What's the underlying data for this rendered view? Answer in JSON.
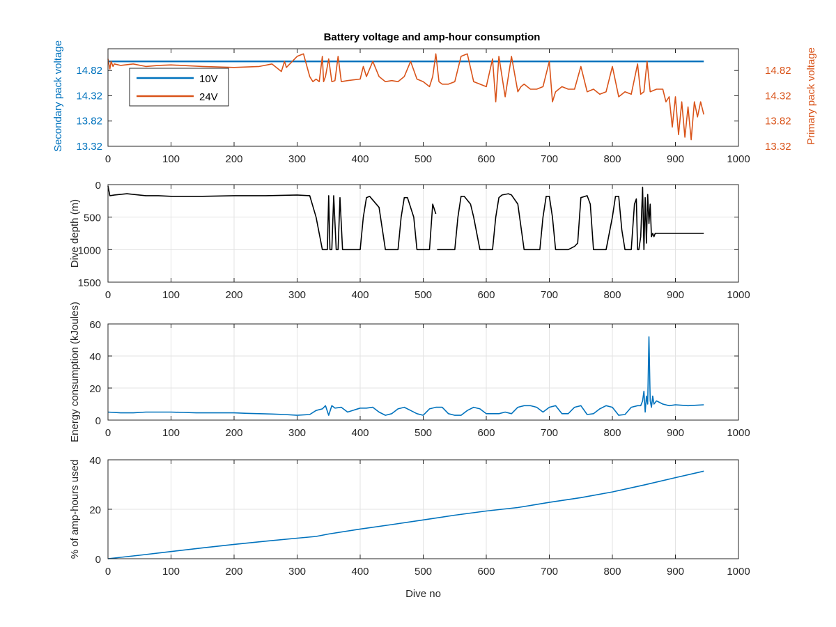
{
  "figure": {
    "title": "Battery voltage and amp-hour consumption",
    "colors": {
      "blue": "#0072BD",
      "orange": "#D95319",
      "black": "#000000",
      "grid": "#e3e3e3"
    }
  },
  "chart_data": [
    {
      "type": "line",
      "title": "Battery voltage and amp-hour consumption",
      "xlabel": "",
      "ylabel_left": "Secondary pack voltage",
      "ylabel_right": "Primary pack voltage",
      "xlim": [
        0,
        1000
      ],
      "xticks": [
        "0",
        "100",
        "200",
        "300",
        "400",
        "500",
        "600",
        "700",
        "800",
        "900",
        "1000"
      ],
      "ylim": [
        13.32,
        15.25
      ],
      "yticks_left": [
        "13.32",
        "13.82",
        "14.32",
        "14.82"
      ],
      "yticks_right": [
        "13.32",
        "13.82",
        "14.32",
        "14.82"
      ],
      "grid": false,
      "legend_position": "top-left",
      "series": [
        {
          "name": "10V",
          "color": "#0072BD",
          "axis": "left",
          "x": [
            0,
            945
          ],
          "y": [
            15.0,
            15.0
          ]
        },
        {
          "name": "24V",
          "color": "#D95319",
          "axis": "right",
          "x": [
            0,
            3,
            5,
            8,
            10,
            20,
            40,
            60,
            80,
            100,
            150,
            200,
            240,
            260,
            275,
            280,
            283,
            300,
            310,
            320,
            325,
            330,
            335,
            340,
            342,
            345,
            350,
            355,
            360,
            365,
            370,
            380,
            400,
            405,
            410,
            420,
            430,
            440,
            450,
            460,
            470,
            480,
            490,
            500,
            510,
            515,
            520,
            525,
            530,
            540,
            550,
            560,
            570,
            580,
            590,
            600,
            610,
            615,
            620,
            630,
            640,
            650,
            655,
            660,
            670,
            680,
            690,
            700,
            705,
            710,
            720,
            730,
            740,
            750,
            760,
            770,
            780,
            790,
            800,
            810,
            820,
            830,
            840,
            845,
            850,
            855,
            860,
            870,
            880,
            885,
            890,
            895,
            900,
            905,
            910,
            915,
            920,
            925,
            930,
            935,
            940,
            945
          ],
          "y": [
            15.05,
            14.85,
            15.0,
            14.9,
            14.95,
            14.92,
            14.95,
            14.9,
            14.92,
            14.93,
            14.9,
            14.88,
            14.9,
            14.95,
            14.8,
            15.0,
            14.88,
            15.1,
            15.15,
            14.7,
            14.6,
            14.65,
            14.6,
            15.1,
            14.6,
            14.7,
            15.05,
            14.6,
            14.62,
            15.1,
            14.6,
            14.62,
            14.65,
            14.9,
            14.7,
            15.0,
            14.7,
            14.6,
            14.62,
            14.6,
            14.7,
            15.0,
            14.65,
            14.6,
            14.5,
            14.7,
            15.15,
            14.6,
            14.55,
            14.55,
            14.6,
            15.1,
            15.15,
            14.6,
            14.55,
            14.5,
            15.05,
            14.2,
            15.1,
            14.3,
            15.1,
            14.4,
            14.5,
            14.55,
            14.45,
            14.45,
            14.5,
            15.0,
            14.2,
            14.4,
            14.5,
            14.45,
            14.45,
            14.9,
            14.4,
            14.45,
            14.35,
            14.4,
            14.9,
            14.3,
            14.4,
            14.35,
            14.95,
            14.35,
            14.4,
            15.0,
            14.4,
            14.45,
            14.45,
            14.2,
            14.3,
            13.7,
            14.3,
            13.55,
            14.2,
            13.5,
            14.1,
            13.45,
            14.2,
            13.9,
            14.2,
            13.95
          ]
        }
      ]
    },
    {
      "type": "line",
      "title": "",
      "xlabel": "",
      "ylabel": "Dive depth (m)",
      "xlim": [
        0,
        1000
      ],
      "xticks": [
        "0",
        "100",
        "200",
        "300",
        "400",
        "500",
        "600",
        "700",
        "800",
        "900",
        "1000"
      ],
      "ylim": [
        0,
        1500
      ],
      "reversed_y": true,
      "yticks": [
        "0",
        "500",
        "1000",
        "1500"
      ],
      "grid": true,
      "series": [
        {
          "color": "#000000",
          "x": [
            0,
            3,
            10,
            30,
            60,
            80,
            100,
            150,
            200,
            250,
            300,
            320,
            330,
            340,
            348,
            350,
            352,
            355,
            358,
            362,
            365,
            368,
            372,
            380,
            400,
            405,
            410,
            415,
            430,
            440,
            445,
            450,
            460,
            465,
            470,
            475,
            485,
            490,
            500,
            510,
            515,
            520
          ],
          "y": [
            20,
            170,
            160,
            140,
            170,
            170,
            180,
            180,
            170,
            170,
            160,
            170,
            500,
            1000,
            1000,
            170,
            1000,
            1000,
            170,
            1000,
            1000,
            200,
            1000,
            1000,
            1000,
            500,
            200,
            180,
            350,
            1000,
            1000,
            1000,
            1000,
            500,
            200,
            200,
            500,
            1000,
            1000,
            1000,
            300,
            450
          ]
        },
        {
          "color": "#000000",
          "x": [
            522,
            530,
            540,
            550,
            555,
            560,
            565,
            575,
            580,
            590,
            600,
            610,
            615,
            620,
            625,
            635,
            640,
            650,
            660,
            665,
            670,
            680,
            685,
            690,
            695,
            700,
            705,
            710,
            720,
            730,
            740,
            745,
            750,
            760,
            765,
            770,
            775,
            780,
            790,
            800,
            805,
            810,
            815,
            820,
            825,
            830,
            835,
            838,
            840,
            842,
            845,
            848,
            850,
            852,
            854,
            856,
            858,
            860,
            862,
            864,
            866,
            868,
            870,
            880,
            900,
            920,
            945
          ],
          "y": [
            1000,
            1000,
            1000,
            1000,
            500,
            180,
            180,
            300,
            500,
            1000,
            1000,
            1000,
            500,
            200,
            160,
            140,
            160,
            300,
            1000,
            1000,
            1000,
            1000,
            1000,
            500,
            180,
            180,
            500,
            1000,
            1000,
            1000,
            950,
            900,
            200,
            170,
            300,
            1000,
            1000,
            1000,
            1000,
            500,
            180,
            180,
            700,
            1000,
            1000,
            1000,
            300,
            220,
            1000,
            1000,
            800,
            40,
            1000,
            200,
            900,
            150,
            600,
            300,
            800,
            750,
            800,
            750,
            750,
            750,
            750,
            750,
            750
          ]
        }
      ]
    },
    {
      "type": "line",
      "title": "",
      "xlabel": "",
      "ylabel": "Energy consumption (kJoules)",
      "xlim": [
        0,
        1000
      ],
      "xticks": [
        "0",
        "100",
        "200",
        "300",
        "400",
        "500",
        "600",
        "700",
        "800",
        "900",
        "1000"
      ],
      "ylim": [
        0,
        60
      ],
      "yticks": [
        "0",
        "20",
        "40",
        "60"
      ],
      "grid": true,
      "series": [
        {
          "color": "#0072BD",
          "x": [
            0,
            20,
            40,
            60,
            80,
            100,
            120,
            140,
            160,
            180,
            200,
            220,
            240,
            260,
            280,
            300,
            320,
            330,
            340,
            345,
            350,
            355,
            360,
            370,
            380,
            400,
            410,
            420,
            430,
            440,
            450,
            460,
            470,
            480,
            490,
            500,
            510,
            520,
            530,
            540,
            550,
            560,
            570,
            580,
            590,
            600,
            610,
            620,
            630,
            640,
            650,
            660,
            670,
            680,
            690,
            700,
            710,
            720,
            730,
            740,
            750,
            760,
            770,
            780,
            790,
            800,
            810,
            820,
            830,
            840,
            845,
            848,
            850,
            852,
            854,
            856,
            858,
            860,
            862,
            864,
            866,
            870,
            880,
            890,
            900,
            920,
            945
          ],
          "y": [
            5,
            4.5,
            4.5,
            5,
            5,
            5,
            4.8,
            4.5,
            4.5,
            4.5,
            4.5,
            4.2,
            4,
            3.8,
            3.5,
            3,
            3.5,
            6,
            7,
            9,
            3,
            9,
            7.5,
            8,
            5,
            7.5,
            7.5,
            8,
            5,
            3,
            4,
            7,
            8,
            6,
            4,
            3,
            7,
            8,
            8,
            4,
            3,
            3,
            6,
            8,
            7,
            4,
            4,
            4,
            5,
            4,
            8,
            9,
            9,
            8,
            5,
            8,
            9,
            4,
            4,
            8,
            9,
            3.5,
            4,
            7,
            9,
            8,
            3,
            3.5,
            8,
            9,
            9,
            12,
            18,
            5,
            15,
            10,
            52,
            12,
            8,
            15,
            10,
            12,
            10,
            9,
            9.5,
            9,
            9.5
          ]
        }
      ]
    },
    {
      "type": "line",
      "title": "",
      "xlabel": "Dive no",
      "ylabel": "% of amp-hours used",
      "xlim": [
        0,
        1000
      ],
      "xticks": [
        "0",
        "100",
        "200",
        "300",
        "400",
        "500",
        "600",
        "700",
        "800",
        "900",
        "1000"
      ],
      "ylim": [
        0,
        40
      ],
      "yticks": [
        "0",
        "20",
        "40"
      ],
      "grid": true,
      "series": [
        {
          "color": "#0072BD",
          "x": [
            0,
            50,
            100,
            150,
            200,
            250,
            300,
            330,
            350,
            400,
            450,
            500,
            550,
            600,
            650,
            700,
            750,
            800,
            850,
            900,
            945
          ],
          "y": [
            0,
            1.4,
            2.9,
            4.4,
            5.8,
            7.1,
            8.3,
            9.0,
            10.0,
            12.0,
            13.8,
            15.7,
            17.6,
            19.3,
            20.7,
            22.8,
            24.7,
            27.0,
            29.8,
            32.8,
            35.4
          ]
        }
      ]
    }
  ]
}
